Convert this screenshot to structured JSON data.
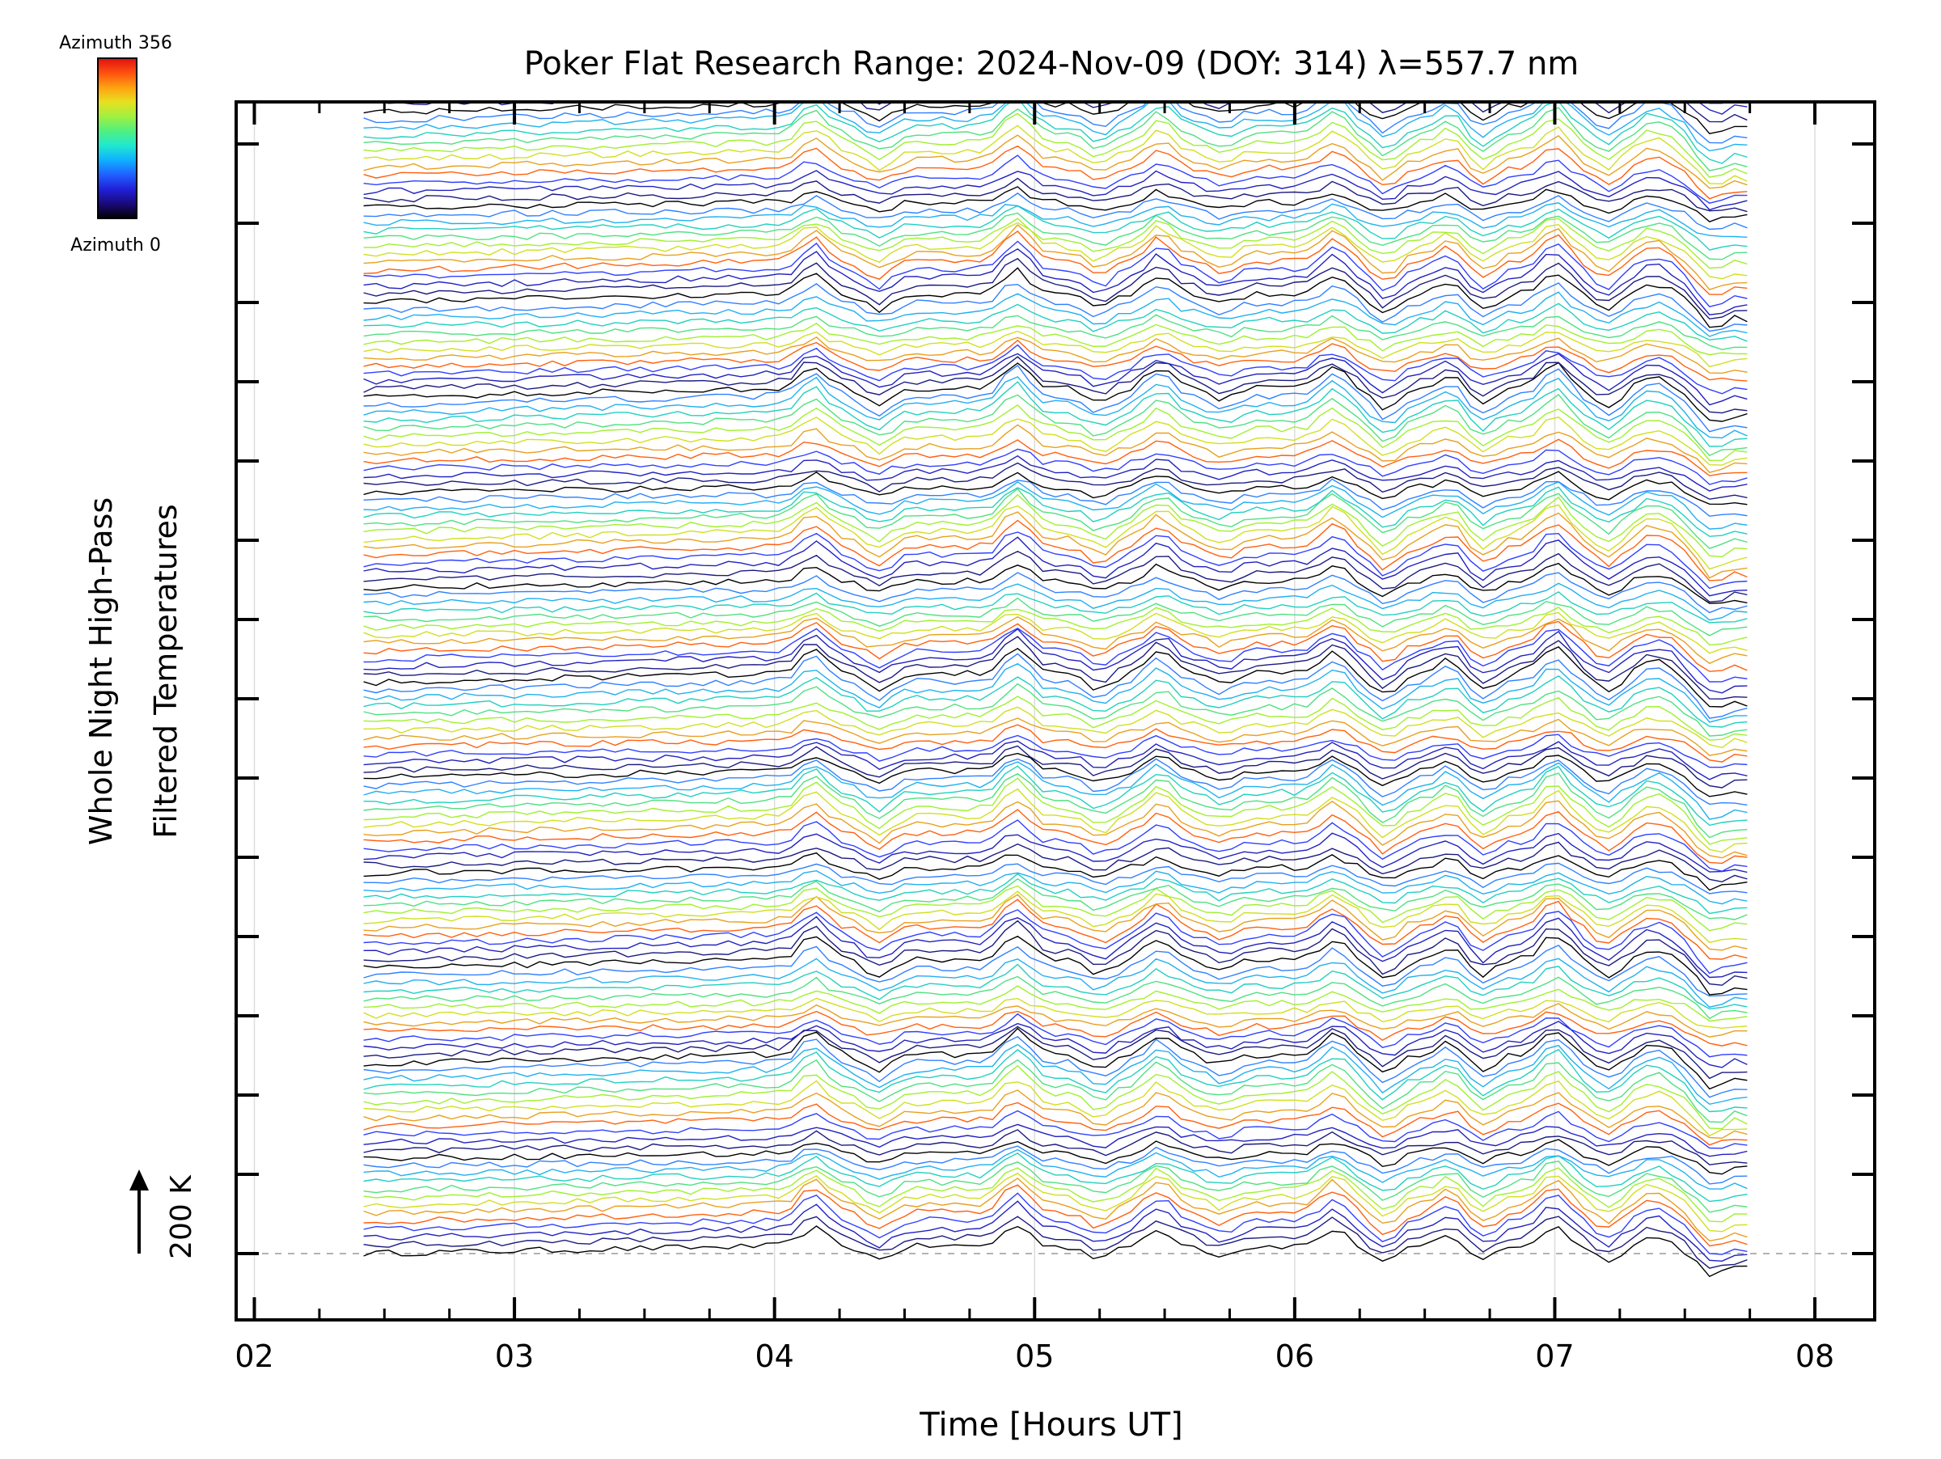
{
  "chart_data": {
    "type": "line",
    "title": "Poker Flat Research Range: 2024-Nov-09 (DOY: 314) λ=557.7 nm",
    "xlabel": "Time [Hours UT]",
    "ylabel_line1": "Whole Night High-Pass",
    "ylabel_line2": "Filtered Temperatures",
    "scale_label": "200 K",
    "colorbar": {
      "top_label": "Azimuth 356",
      "bottom_label": "Azimuth 0",
      "colors": [
        "#000000",
        "#1a0a7a",
        "#2020d8",
        "#2060ff",
        "#10b0ff",
        "#20e8d0",
        "#50f080",
        "#a0f040",
        "#e8e020",
        "#ffa010",
        "#ff5010",
        "#e01010"
      ]
    },
    "x_ticks": [
      "02",
      "03",
      "04",
      "05",
      "06",
      "07",
      "08"
    ],
    "xlim": [
      1.93,
      8.23
    ],
    "data_start_hour": 2.42,
    "data_end_hour": 7.74,
    "n_series": 150,
    "stack_offset_K": 20,
    "scale_K": 200,
    "series_colors_cycle": [
      "#000000",
      "#1a1a80",
      "#2020c0",
      "#3040ff",
      "#ff6010",
      "#e8a020",
      "#d0e020",
      "#a0f030",
      "#50e080",
      "#20d0c0",
      "#20b0f0",
      "#3080ff"
    ],
    "features": [
      {
        "hour": 4.15,
        "amplitude_K": 60
      },
      {
        "hour": 4.4,
        "amplitude_K": -45
      },
      {
        "hour": 4.93,
        "amplitude_K": 70
      },
      {
        "hour": 5.25,
        "amplitude_K": -40
      },
      {
        "hour": 5.48,
        "amplitude_K": 55
      },
      {
        "hour": 5.72,
        "amplitude_K": -30
      },
      {
        "hour": 6.15,
        "amplitude_K": 55
      },
      {
        "hour": 6.35,
        "amplitude_K": -55
      },
      {
        "hour": 6.6,
        "amplitude_K": 35
      },
      {
        "hour": 6.72,
        "amplitude_K": -45
      },
      {
        "hour": 7.0,
        "amplitude_K": 65
      },
      {
        "hour": 7.2,
        "amplitude_K": -45
      },
      {
        "hour": 7.38,
        "amplitude_K": 30
      },
      {
        "hour": 7.6,
        "amplitude_K": -55
      }
    ]
  }
}
